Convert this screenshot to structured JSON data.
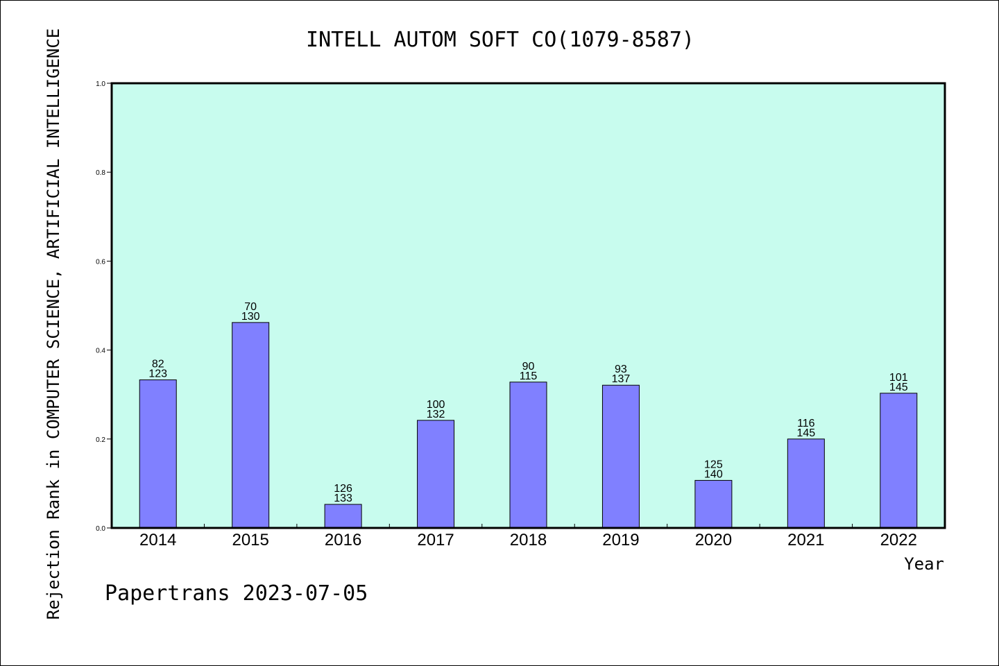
{
  "chart_data": {
    "type": "bar",
    "title": "INTELL AUTOM SOFT CO(1079-8587)",
    "ylabel": "Rejection Rank in COMPUTER SCIENCE, ARTIFICIAL INTELLIGENCE",
    "xlabel": "Year",
    "footer": "Papertrans 2023-07-05",
    "ylim": [
      0,
      1.0
    ],
    "yticks": [
      "0.0",
      "0.2",
      "0.4",
      "0.6",
      "0.8",
      "1.0"
    ],
    "categories": [
      "2014",
      "2015",
      "2016",
      "2017",
      "2018",
      "2019",
      "2020",
      "2021",
      "2022"
    ],
    "values": [
      0.333,
      0.462,
      0.053,
      0.242,
      0.328,
      0.321,
      0.107,
      0.2,
      0.303
    ],
    "labels_top": [
      "82",
      "70",
      "126",
      "100",
      "90",
      "93",
      "125",
      "116",
      "101"
    ],
    "labels_bottom": [
      "123",
      "130",
      "133",
      "132",
      "115",
      "137",
      "140",
      "145",
      "145"
    ],
    "grid": false,
    "legend": "none",
    "colors": {
      "plot_background": "#c8fcee",
      "bar_fill": "#8080ff",
      "bar_stroke": "#000000",
      "axis": "#000000"
    }
  }
}
